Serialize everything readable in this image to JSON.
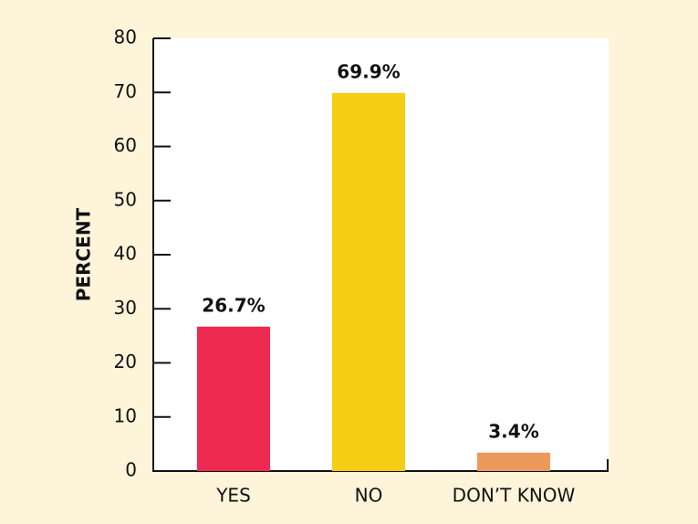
{
  "chart_data": {
    "type": "bar",
    "ylabel": "PERCENT",
    "categories": [
      "YES",
      "NO",
      "DON’T KNOW"
    ],
    "values": [
      26.7,
      69.9,
      3.4
    ],
    "value_labels": [
      "26.7%",
      "69.9%",
      "3.4%"
    ],
    "colors": [
      "#ee2a50",
      "#f5cd15",
      "#ec9a5c"
    ],
    "ylim": [
      0,
      80
    ],
    "yticks": [
      0,
      10,
      20,
      30,
      40,
      50,
      60,
      70,
      80
    ]
  }
}
